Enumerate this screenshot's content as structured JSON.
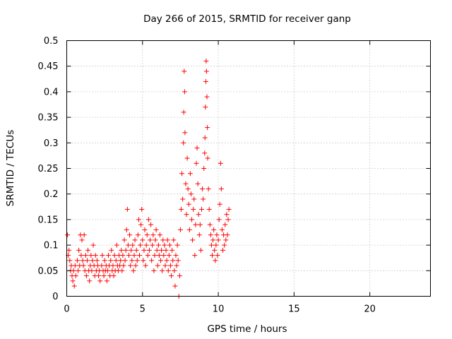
{
  "chart_data": {
    "type": "scatter",
    "title": "Day 266 of 2015, SRMTID for receiver ganp",
    "xlabel": "GPS time / hours",
    "ylabel": "SRMTID / TECUs",
    "xlim": [
      0,
      24
    ],
    "ylim": [
      0,
      0.5
    ],
    "x_ticks": [
      0,
      5,
      10,
      15,
      20
    ],
    "x_tick_labels": [
      "0",
      "5",
      "10",
      "15",
      "20"
    ],
    "y_ticks": [
      0,
      0.05,
      0.1,
      0.15,
      0.2,
      0.25,
      0.3,
      0.35,
      0.4,
      0.45,
      0.5
    ],
    "y_tick_labels": [
      "0",
      "0.05",
      "0.1",
      "0.15",
      "0.2",
      "0.25",
      "0.3",
      "0.35",
      "0.4",
      "0.45",
      "0.5"
    ],
    "grid": true,
    "marker": "+",
    "series_color": "#ff0000",
    "series": [
      {
        "name": "SRMTID",
        "points": [
          [
            0.05,
            0.12
          ],
          [
            0.1,
            0.08
          ],
          [
            0.15,
            0.09
          ],
          [
            0.2,
            0.07
          ],
          [
            0.25,
            0.05
          ],
          [
            0.3,
            0.06
          ],
          [
            0.35,
            0.04
          ],
          [
            0.4,
            0.03
          ],
          [
            0.45,
            0.05
          ],
          [
            0.5,
            0.02
          ],
          [
            0.55,
            0.06
          ],
          [
            0.6,
            0.04
          ],
          [
            0.7,
            0.07
          ],
          [
            0.75,
            0.05
          ],
          [
            0.8,
            0.09
          ],
          [
            0.85,
            0.06
          ],
          [
            0.9,
            0.12
          ],
          [
            0.95,
            0.08
          ],
          [
            1.0,
            0.11
          ],
          [
            1.05,
            0.07
          ],
          [
            1.1,
            0.06
          ],
          [
            1.15,
            0.12
          ],
          [
            1.2,
            0.05
          ],
          [
            1.25,
            0.08
          ],
          [
            1.3,
            0.04
          ],
          [
            1.35,
            0.07
          ],
          [
            1.4,
            0.09
          ],
          [
            1.45,
            0.05
          ],
          [
            1.5,
            0.03
          ],
          [
            1.55,
            0.06
          ],
          [
            1.6,
            0.08
          ],
          [
            1.65,
            0.05
          ],
          [
            1.7,
            0.07
          ],
          [
            1.75,
            0.1
          ],
          [
            1.8,
            0.06
          ],
          [
            1.85,
            0.04
          ],
          [
            1.9,
            0.08
          ],
          [
            1.95,
            0.05
          ],
          [
            2.0,
            0.07
          ],
          [
            2.05,
            0.06
          ],
          [
            2.1,
            0.04
          ],
          [
            2.15,
            0.05
          ],
          [
            2.2,
            0.03
          ],
          [
            2.3,
            0.06
          ],
          [
            2.35,
            0.08
          ],
          [
            2.4,
            0.05
          ],
          [
            2.45,
            0.04
          ],
          [
            2.5,
            0.07
          ],
          [
            2.55,
            0.05
          ],
          [
            2.6,
            0.06
          ],
          [
            2.65,
            0.03
          ],
          [
            2.7,
            0.05
          ],
          [
            2.75,
            0.08
          ],
          [
            2.8,
            0.06
          ],
          [
            2.85,
            0.04
          ],
          [
            2.9,
            0.07
          ],
          [
            2.95,
            0.09
          ],
          [
            3.0,
            0.05
          ],
          [
            3.05,
            0.06
          ],
          [
            3.1,
            0.04
          ],
          [
            3.15,
            0.08
          ],
          [
            3.2,
            0.05
          ],
          [
            3.25,
            0.07
          ],
          [
            3.3,
            0.1
          ],
          [
            3.35,
            0.06
          ],
          [
            3.4,
            0.05
          ],
          [
            3.45,
            0.08
          ],
          [
            3.5,
            0.06
          ],
          [
            3.55,
            0.07
          ],
          [
            3.6,
            0.09
          ],
          [
            3.65,
            0.05
          ],
          [
            3.7,
            0.08
          ],
          [
            3.75,
            0.06
          ],
          [
            3.8,
            0.11
          ],
          [
            3.85,
            0.07
          ],
          [
            3.9,
            0.09
          ],
          [
            3.95,
            0.13
          ],
          [
            4.0,
            0.17
          ],
          [
            4.05,
            0.1
          ],
          [
            4.1,
            0.08
          ],
          [
            4.15,
            0.12
          ],
          [
            4.2,
            0.06
          ],
          [
            4.25,
            0.09
          ],
          [
            4.3,
            0.07
          ],
          [
            4.35,
            0.1
          ],
          [
            4.4,
            0.05
          ],
          [
            4.45,
            0.08
          ],
          [
            4.5,
            0.11
          ],
          [
            4.55,
            0.06
          ],
          [
            4.6,
            0.09
          ],
          [
            4.65,
            0.07
          ],
          [
            4.7,
            0.12
          ],
          [
            4.75,
            0.15
          ],
          [
            4.8,
            0.08
          ],
          [
            4.85,
            0.1
          ],
          [
            4.9,
            0.14
          ],
          [
            4.95,
            0.17
          ],
          [
            5.0,
            0.11
          ],
          [
            5.05,
            0.07
          ],
          [
            5.1,
            0.09
          ],
          [
            5.15,
            0.13
          ],
          [
            5.2,
            0.06
          ],
          [
            5.25,
            0.1
          ],
          [
            5.3,
            0.12
          ],
          [
            5.35,
            0.08
          ],
          [
            5.4,
            0.15
          ],
          [
            5.45,
            0.09
          ],
          [
            5.5,
            0.11
          ],
          [
            5.55,
            0.14
          ],
          [
            5.6,
            0.07
          ],
          [
            5.65,
            0.1
          ],
          [
            5.7,
            0.12
          ],
          [
            5.75,
            0.05
          ],
          [
            5.8,
            0.08
          ],
          [
            5.85,
            0.11
          ],
          [
            5.9,
            0.13
          ],
          [
            5.95,
            0.09
          ],
          [
            6.0,
            0.06
          ],
          [
            6.05,
            0.1
          ],
          [
            6.1,
            0.08
          ],
          [
            6.15,
            0.12
          ],
          [
            6.2,
            0.07
          ],
          [
            6.25,
            0.09
          ],
          [
            6.3,
            0.05
          ],
          [
            6.35,
            0.11
          ],
          [
            6.4,
            0.08
          ],
          [
            6.45,
            0.1
          ],
          [
            6.5,
            0.06
          ],
          [
            6.55,
            0.09
          ],
          [
            6.6,
            0.07
          ],
          [
            6.65,
            0.11
          ],
          [
            6.7,
            0.05
          ],
          [
            6.75,
            0.08
          ],
          [
            6.8,
            0.1
          ],
          [
            6.85,
            0.06
          ],
          [
            6.9,
            0.04
          ],
          [
            6.95,
            0.09
          ],
          [
            7.0,
            0.07
          ],
          [
            7.05,
            0.11
          ],
          [
            7.1,
            0.05
          ],
          [
            7.15,
            0.02
          ],
          [
            7.2,
            0.08
          ],
          [
            7.25,
            0.06
          ],
          [
            7.3,
            0.1
          ],
          [
            7.35,
            0.07
          ],
          [
            7.4,
            0.0
          ],
          [
            7.45,
            0.04
          ],
          [
            7.5,
            0.13
          ],
          [
            7.55,
            0.17
          ],
          [
            7.6,
            0.24
          ],
          [
            7.65,
            0.19
          ],
          [
            7.7,
            0.3
          ],
          [
            7.72,
            0.36
          ],
          [
            7.75,
            0.44
          ],
          [
            7.78,
            0.4
          ],
          [
            7.8,
            0.32
          ],
          [
            7.85,
            0.22
          ],
          [
            7.9,
            0.16
          ],
          [
            7.95,
            0.27
          ],
          [
            8.0,
            0.21
          ],
          [
            8.05,
            0.18
          ],
          [
            8.1,
            0.13
          ],
          [
            8.15,
            0.24
          ],
          [
            8.2,
            0.2
          ],
          [
            8.25,
            0.15
          ],
          [
            8.3,
            0.11
          ],
          [
            8.35,
            0.17
          ],
          [
            8.4,
            0.19
          ],
          [
            8.45,
            0.08
          ],
          [
            8.5,
            0.14
          ],
          [
            8.55,
            0.26
          ],
          [
            8.6,
            0.29
          ],
          [
            8.65,
            0.22
          ],
          [
            8.7,
            0.16
          ],
          [
            8.75,
            0.12
          ],
          [
            8.8,
            0.14
          ],
          [
            8.85,
            0.09
          ],
          [
            8.9,
            0.17
          ],
          [
            8.95,
            0.21
          ],
          [
            9.0,
            0.19
          ],
          [
            9.05,
            0.25
          ],
          [
            9.1,
            0.28
          ],
          [
            9.12,
            0.31
          ],
          [
            9.15,
            0.37
          ],
          [
            9.18,
            0.42
          ],
          [
            9.2,
            0.46
          ],
          [
            9.22,
            0.44
          ],
          [
            9.25,
            0.39
          ],
          [
            9.28,
            0.33
          ],
          [
            9.3,
            0.27
          ],
          [
            9.35,
            0.21
          ],
          [
            9.4,
            0.17
          ],
          [
            9.45,
            0.14
          ],
          [
            9.5,
            0.12
          ],
          [
            9.55,
            0.1
          ],
          [
            9.6,
            0.08
          ],
          [
            9.65,
            0.11
          ],
          [
            9.7,
            0.13
          ],
          [
            9.75,
            0.09
          ],
          [
            9.8,
            0.07
          ],
          [
            9.85,
            0.1
          ],
          [
            9.9,
            0.12
          ],
          [
            9.95,
            0.08
          ],
          [
            10.0,
            0.11
          ],
          [
            10.05,
            0.15
          ],
          [
            10.1,
            0.18
          ],
          [
            10.15,
            0.26
          ],
          [
            10.2,
            0.21
          ],
          [
            10.25,
            0.13
          ],
          [
            10.3,
            0.09
          ],
          [
            10.35,
            0.12
          ],
          [
            10.4,
            0.1
          ],
          [
            10.45,
            0.14
          ],
          [
            10.5,
            0.11
          ],
          [
            10.55,
            0.16
          ],
          [
            10.6,
            0.12
          ],
          [
            10.65,
            0.15
          ],
          [
            10.7,
            0.17
          ]
        ]
      }
    ]
  }
}
